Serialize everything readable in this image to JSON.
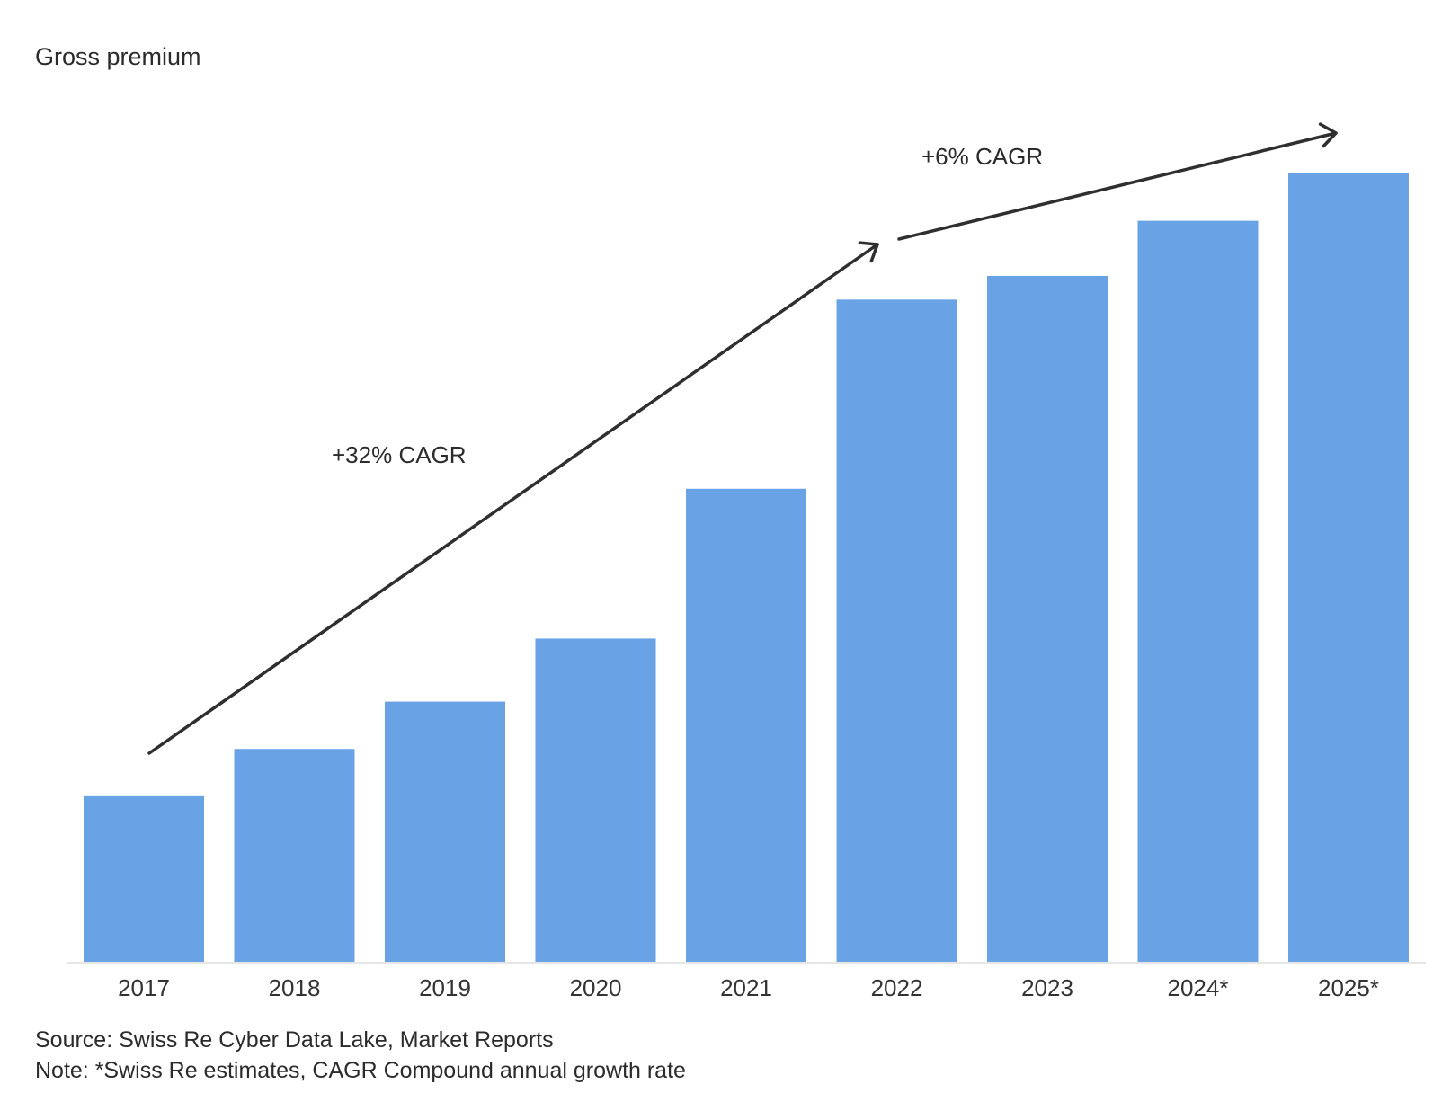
{
  "chart_data": {
    "type": "bar",
    "title": "",
    "ylabel": "Gross premium",
    "xlabel": "",
    "categories": [
      "2017",
      "2018",
      "2019",
      "2020",
      "2021",
      "2022",
      "2023",
      "2024*",
      "2025*"
    ],
    "values": [
      21,
      27,
      33,
      41,
      60,
      84,
      87,
      94,
      100
    ],
    "ylim": [
      0,
      100
    ],
    "grid": false,
    "bar_color": "#69a2e5",
    "annotations": [
      {
        "text": "+32% CAGR",
        "from": "2017",
        "to": "2022"
      },
      {
        "text": "+6% CAGR",
        "from": "2022",
        "to": "2025*"
      }
    ]
  },
  "footer": {
    "source": "Source: Swiss Re Cyber Data Lake, Market Reports",
    "note": "Note: *Swiss Re estimates, CAGR Compound annual growth rate"
  }
}
